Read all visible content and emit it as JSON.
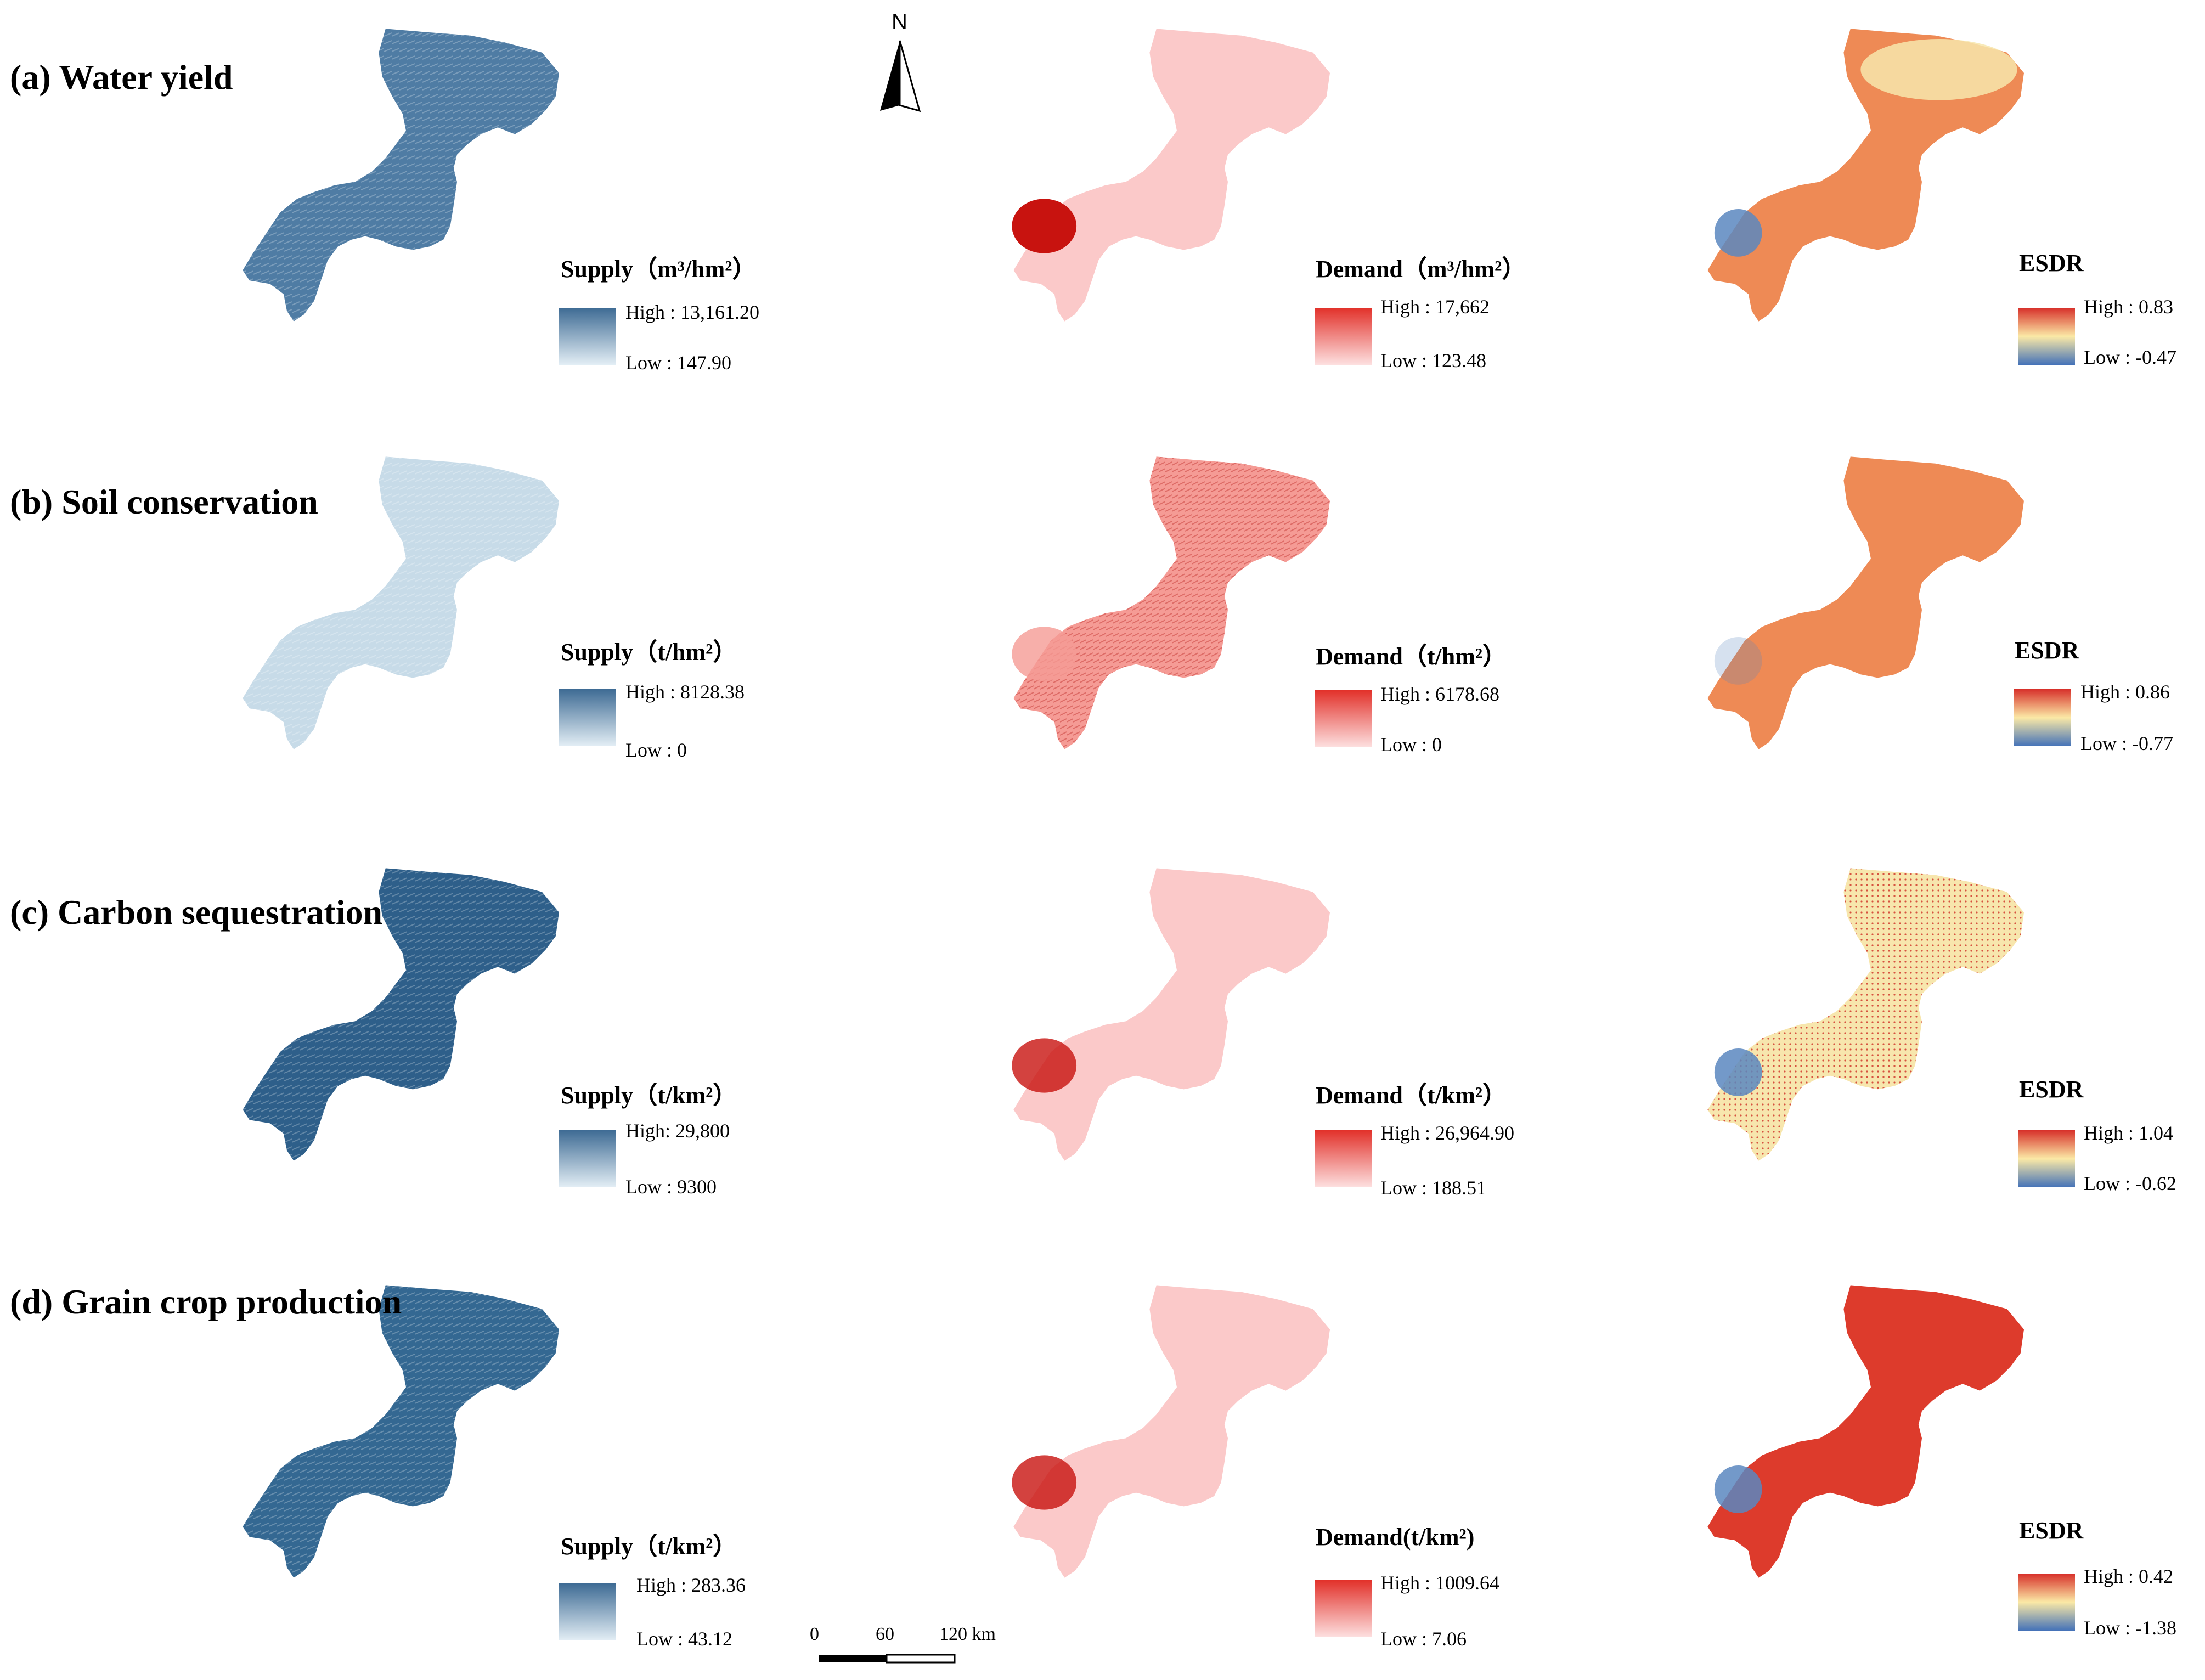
{
  "north_arrow": {
    "label": "N"
  },
  "scale_bar": {
    "labels": [
      "0",
      "60",
      "120 km"
    ]
  },
  "rows": [
    {
      "title": "(a) Water yield",
      "panels": [
        {
          "kind": "supply",
          "legend_title": "Supply（m³/hm²）",
          "high": "High : 13,161.20",
          "low": "Low : 147.90",
          "ramp": [
            "#3e6b94",
            "#e3eef5"
          ]
        },
        {
          "kind": "demand",
          "legend_title": "Demand（m³/hm²）",
          "high": "High : 17,662",
          "low": "Low : 123.48",
          "ramp": [
            "#e2312a",
            "#fde0e0"
          ]
        },
        {
          "kind": "esdr",
          "legend_title": "ESDR",
          "high": "High : 0.83",
          "low": "Low : -0.47",
          "ramp": [
            "#d7302a",
            "#fbe9a6",
            "#4472b8"
          ]
        }
      ]
    },
    {
      "title": "(b) Soil conservation",
      "panels": [
        {
          "kind": "supply",
          "legend_title": "Supply（t/hm²）",
          "high": "High : 8128.38",
          "low": "Low : 0",
          "ramp": [
            "#3e6b94",
            "#e3eef5"
          ]
        },
        {
          "kind": "demand",
          "legend_title": "Demand（t/hm²）",
          "high": "High : 6178.68",
          "low": "Low : 0",
          "ramp": [
            "#e2312a",
            "#fde0e0"
          ]
        },
        {
          "kind": "esdr",
          "legend_title": "ESDR",
          "high": "High : 0.86",
          "low": "Low : -0.77",
          "ramp": [
            "#d7302a",
            "#fbe9a6",
            "#4472b8"
          ]
        }
      ]
    },
    {
      "title": "(c) Carbon sequestration",
      "panels": [
        {
          "kind": "supply",
          "legend_title": "Supply（t/km²）",
          "high": "High: 29,800",
          "low": "Low : 9300",
          "ramp": [
            "#3e6b94",
            "#e3eef5"
          ]
        },
        {
          "kind": "demand",
          "legend_title": "Demand（t/km²）",
          "high": "High : 26,964.90",
          "low": "Low : 188.51",
          "ramp": [
            "#e2312a",
            "#fde0e0"
          ]
        },
        {
          "kind": "esdr",
          "legend_title": "ESDR",
          "high": "High : 1.04",
          "low": "Low : -0.62",
          "ramp": [
            "#d7302a",
            "#fbe9a6",
            "#4472b8"
          ]
        }
      ]
    },
    {
      "title": "(d) Grain crop production",
      "panels": [
        {
          "kind": "supply",
          "legend_title": "Supply（t/km²）",
          "high": "High : 283.36",
          "low": "Low : 43.12",
          "ramp": [
            "#3e6b94",
            "#e3eef5"
          ]
        },
        {
          "kind": "demand",
          "legend_title": "Demand(t/km²)",
          "high": "High : 1009.64",
          "low": "Low : 7.06",
          "ramp": [
            "#e2312a",
            "#fde0e0"
          ]
        },
        {
          "kind": "esdr",
          "legend_title": "ESDR",
          "high": "High : 0.42",
          "low": "Low : -1.38",
          "ramp": [
            "#d7302a",
            "#fbe9a6",
            "#4472b8"
          ]
        }
      ]
    }
  ],
  "map_fills": {
    "water_supply": "#4f7ca4",
    "soil_supply": "#c7dbe8",
    "carbon_supply": "#2e5f8a",
    "grain_supply": "#346892",
    "demand_light": "#fbc9c9",
    "demand_mid": "#f59b95",
    "demand_hot": "#c8130f",
    "esdr_orange": "#ee8a55",
    "esdr_red": "#dd3b2c",
    "esdr_cream": "#f7e6ad",
    "esdr_blue": "#5a87c0"
  }
}
